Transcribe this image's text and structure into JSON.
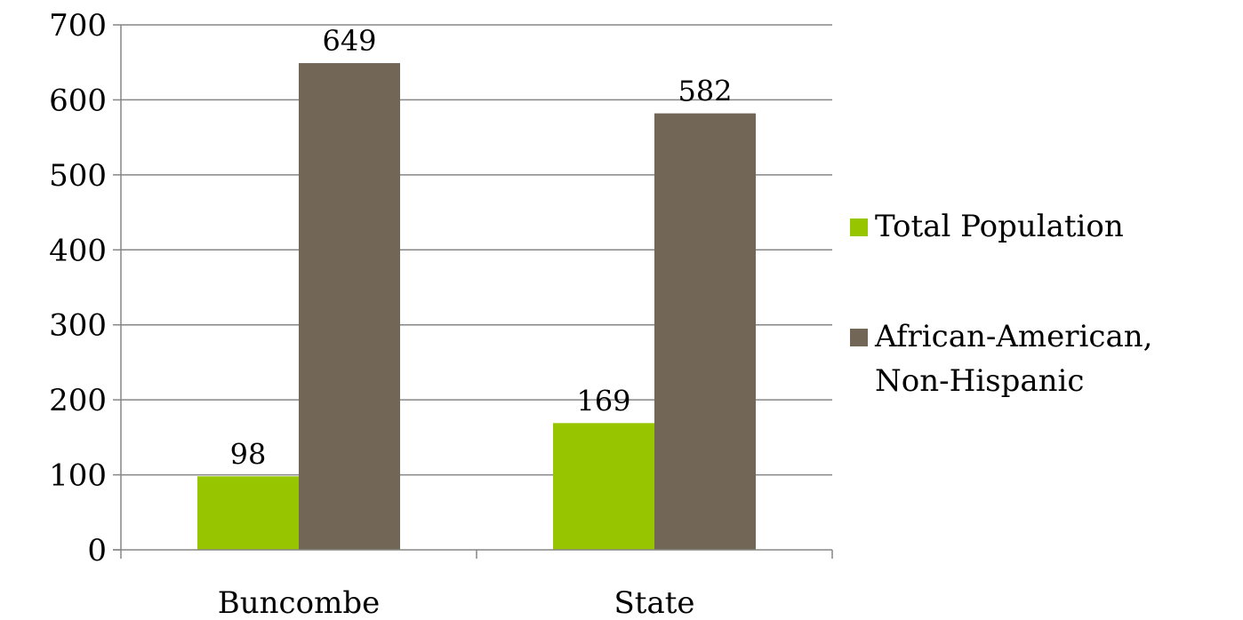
{
  "chart_data": {
    "type": "bar",
    "categories": [
      "Buncombe",
      "State"
    ],
    "series": [
      {
        "name": "Total Population",
        "values": [
          98,
          169
        ],
        "color": "#97c600"
      },
      {
        "name": "African-American, Non-Hispanic",
        "values": [
          649,
          582
        ],
        "color": "#726657"
      }
    ],
    "ylim": [
      0,
      700
    ],
    "yticks": [
      0,
      100,
      200,
      300,
      400,
      500,
      600,
      700
    ],
    "grid": true,
    "legend_position": "right",
    "data_labels": true,
    "title": "",
    "xlabel": "",
    "ylabel": ""
  }
}
